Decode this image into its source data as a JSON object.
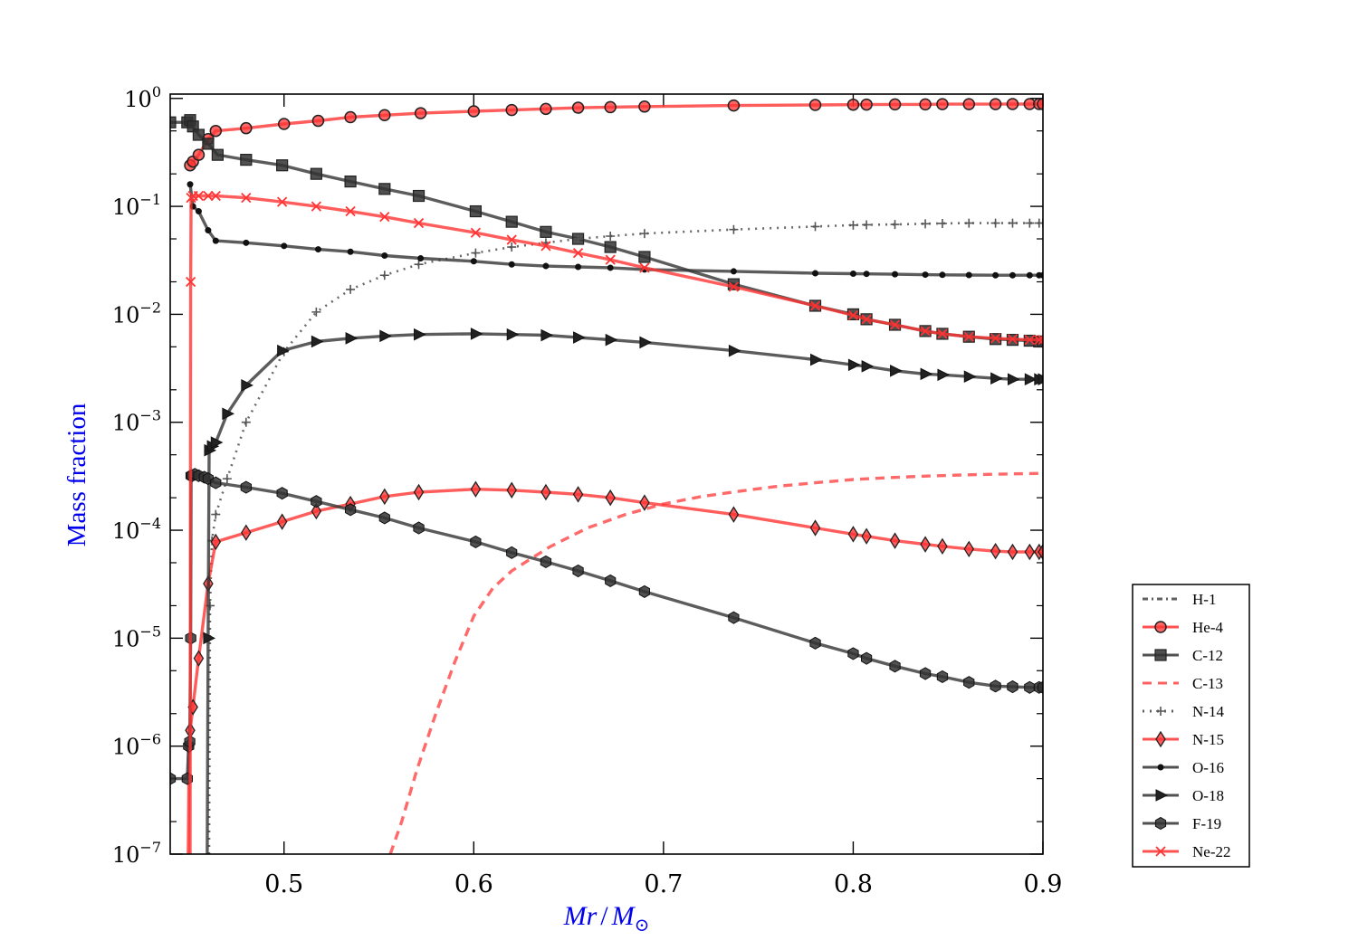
{
  "chart_data": {
    "type": "line",
    "xlabel": {
      "main": "Mr",
      "slash": "/",
      "sym": "M",
      "sub": "⊙"
    },
    "ylabel": "Mass fraction",
    "xlim": [
      0.44,
      0.9
    ],
    "ylim": [
      1e-07,
      1.1
    ],
    "yscale": "log",
    "legend_position": "outside-lower-right",
    "x_ticks": [
      {
        "value": 0.5,
        "label": "0.5"
      },
      {
        "value": 0.6,
        "label": "0.6"
      },
      {
        "value": 0.7,
        "label": "0.7"
      },
      {
        "value": 0.8,
        "label": "0.8"
      },
      {
        "value": 0.9,
        "label": "0.9"
      }
    ],
    "y_ticks": [
      {
        "exp": 0,
        "base": "10",
        "sup": "0"
      },
      {
        "exp": -1,
        "base": "10",
        "sup": "−1"
      },
      {
        "exp": -2,
        "base": "10",
        "sup": "−2"
      },
      {
        "exp": -3,
        "base": "10",
        "sup": "−3"
      },
      {
        "exp": -4,
        "base": "10",
        "sup": "−4"
      },
      {
        "exp": -5,
        "base": "10",
        "sup": "−5"
      },
      {
        "exp": -6,
        "base": "10",
        "sup": "−6"
      },
      {
        "exp": -7,
        "base": "10",
        "sup": "−7"
      }
    ],
    "series": [
      {
        "name": "H-1",
        "color": "#444444",
        "dash": "2 5 8 5",
        "marker": "none",
        "x": [],
        "y": []
      },
      {
        "name": "He-4",
        "color": "#ff3333",
        "dash": "",
        "marker": "circle",
        "x": [
          0.4505,
          0.452,
          0.455,
          0.46,
          0.464,
          0.48,
          0.5,
          0.518,
          0.535,
          0.553,
          0.572,
          0.6,
          0.62,
          0.638,
          0.655,
          0.672,
          0.69,
          0.737,
          0.78,
          0.8,
          0.807,
          0.822,
          0.838,
          0.847,
          0.861,
          0.875,
          0.884,
          0.893,
          0.898,
          0.9
        ],
        "y": [
          0.24,
          0.26,
          0.3,
          0.42,
          0.5,
          0.53,
          0.58,
          0.62,
          0.67,
          0.7,
          0.73,
          0.76,
          0.78,
          0.8,
          0.82,
          0.83,
          0.84,
          0.86,
          0.87,
          0.875,
          0.877,
          0.88,
          0.88,
          0.885,
          0.885,
          0.885,
          0.887,
          0.887,
          0.887,
          0.887
        ]
      },
      {
        "name": "C-12",
        "color": "#333333",
        "dash": "",
        "marker": "square",
        "x": [
          0.44,
          0.449,
          0.4505,
          0.452,
          0.455,
          0.46,
          0.465,
          0.48,
          0.499,
          0.517,
          0.535,
          0.553,
          0.571,
          0.601,
          0.62,
          0.638,
          0.655,
          0.672,
          0.69,
          0.737,
          0.78,
          0.8,
          0.807,
          0.822,
          0.838,
          0.847,
          0.861,
          0.875,
          0.884,
          0.893,
          0.898,
          0.9
        ],
        "y": [
          0.6,
          0.6,
          0.63,
          0.55,
          0.46,
          0.38,
          0.3,
          0.27,
          0.24,
          0.2,
          0.17,
          0.145,
          0.125,
          0.09,
          0.072,
          0.058,
          0.05,
          0.042,
          0.034,
          0.019,
          0.012,
          0.01,
          0.009,
          0.008,
          0.007,
          0.0066,
          0.0062,
          0.0059,
          0.0058,
          0.0057,
          0.0056,
          0.0056
        ]
      },
      {
        "name": "C-13",
        "color": "#ff4444",
        "dash": "10 7",
        "marker": "none",
        "x": [
          0.556,
          0.562,
          0.57,
          0.58,
          0.59,
          0.6,
          0.61,
          0.62,
          0.64,
          0.66,
          0.68,
          0.7,
          0.72,
          0.74,
          0.76,
          0.78,
          0.8,
          0.82,
          0.84,
          0.86,
          0.88,
          0.9
        ],
        "y": [
          1e-07,
          2e-07,
          6e-07,
          2e-06,
          6e-06,
          1.6e-05,
          2.9e-05,
          4.2e-05,
          7e-05,
          0.000105,
          0.00014,
          0.000175,
          0.000205,
          0.00023,
          0.000255,
          0.000275,
          0.000295,
          0.000308,
          0.000318,
          0.000326,
          0.000332,
          0.000336
        ]
      },
      {
        "name": "N-14",
        "color": "#444444",
        "dash": "2 6",
        "marker": "plus",
        "x": [
          0.4605,
          0.461,
          0.462,
          0.464,
          0.47,
          0.48,
          0.5,
          0.517,
          0.535,
          0.553,
          0.571,
          0.601,
          0.62,
          0.638,
          0.655,
          0.672,
          0.69,
          0.737,
          0.78,
          0.8,
          0.807,
          0.822,
          0.838,
          0.847,
          0.861,
          0.875,
          0.884,
          0.893,
          0.898,
          0.9
        ],
        "y": [
          1e-07,
          2e-05,
          8e-05,
          0.00014,
          0.0003,
          0.001,
          0.0045,
          0.0105,
          0.017,
          0.023,
          0.029,
          0.037,
          0.042,
          0.046,
          0.05,
          0.053,
          0.056,
          0.061,
          0.065,
          0.067,
          0.0675,
          0.068,
          0.069,
          0.0695,
          0.07,
          0.07,
          0.07,
          0.07,
          0.07,
          0.07
        ]
      },
      {
        "name": "N-15",
        "color": "#ff3333",
        "dash": "",
        "marker": "diamond",
        "x": [
          0.4495,
          0.45,
          0.4505,
          0.452,
          0.455,
          0.46,
          0.464,
          0.48,
          0.499,
          0.517,
          0.535,
          0.553,
          0.571,
          0.601,
          0.62,
          0.638,
          0.655,
          0.672,
          0.69,
          0.737,
          0.78,
          0.8,
          0.807,
          0.822,
          0.838,
          0.847,
          0.861,
          0.875,
          0.884,
          0.893,
          0.898,
          0.9
        ],
        "y": [
          1e-07,
          1e-06,
          1.4e-06,
          2.3e-06,
          6.5e-06,
          3.2e-05,
          7.8e-05,
          9.5e-05,
          0.00012,
          0.00015,
          0.000175,
          0.000205,
          0.000225,
          0.00024,
          0.000235,
          0.000225,
          0.000215,
          0.0002,
          0.00018,
          0.00014,
          0.000105,
          9.2e-05,
          8.8e-05,
          8e-05,
          7.4e-05,
          7.1e-05,
          6.7e-05,
          6.4e-05,
          6.3e-05,
          6.3e-05,
          6.3e-05,
          6.3e-05
        ]
      },
      {
        "name": "O-16",
        "color": "#333333",
        "dash": "",
        "marker": "dot",
        "x": [
          0.4505,
          0.452,
          0.455,
          0.46,
          0.464,
          0.48,
          0.5,
          0.518,
          0.535,
          0.553,
          0.572,
          0.6,
          0.62,
          0.638,
          0.655,
          0.672,
          0.69,
          0.737,
          0.78,
          0.8,
          0.807,
          0.822,
          0.838,
          0.847,
          0.861,
          0.875,
          0.884,
          0.893,
          0.898,
          0.9
        ],
        "y": [
          0.16,
          0.1,
          0.09,
          0.06,
          0.048,
          0.046,
          0.043,
          0.04,
          0.038,
          0.035,
          0.033,
          0.031,
          0.029,
          0.028,
          0.0275,
          0.027,
          0.026,
          0.025,
          0.024,
          0.0238,
          0.0237,
          0.0235,
          0.0233,
          0.0232,
          0.0231,
          0.023,
          0.023,
          0.023,
          0.023,
          0.023
        ]
      },
      {
        "name": "O-18",
        "color": "#333333",
        "dash": "",
        "marker": "triangle",
        "x": [
          0.4595,
          0.46,
          0.4605,
          0.462,
          0.464,
          0.47,
          0.48,
          0.499,
          0.517,
          0.535,
          0.553,
          0.571,
          0.601,
          0.62,
          0.638,
          0.655,
          0.672,
          0.69,
          0.737,
          0.78,
          0.8,
          0.807,
          0.822,
          0.838,
          0.847,
          0.861,
          0.875,
          0.884,
          0.893,
          0.898,
          0.9
        ],
        "y": [
          1e-07,
          1e-05,
          0.00055,
          0.0006,
          0.00065,
          0.0012,
          0.0022,
          0.0046,
          0.0056,
          0.006,
          0.0063,
          0.0065,
          0.0066,
          0.0065,
          0.0064,
          0.0061,
          0.0058,
          0.0055,
          0.0046,
          0.0038,
          0.0034,
          0.0033,
          0.003,
          0.0028,
          0.00275,
          0.00265,
          0.00255,
          0.0025,
          0.0025,
          0.0025,
          0.0025
        ]
      },
      {
        "name": "F-19",
        "color": "#333333",
        "dash": "",
        "marker": "hexagon",
        "x": [
          0.44,
          0.449,
          0.4497,
          0.4503,
          0.4508,
          0.451,
          0.4515,
          0.453,
          0.455,
          0.458,
          0.46,
          0.464,
          0.48,
          0.499,
          0.517,
          0.535,
          0.553,
          0.571,
          0.601,
          0.62,
          0.638,
          0.655,
          0.672,
          0.69,
          0.737,
          0.78,
          0.8,
          0.807,
          0.822,
          0.838,
          0.847,
          0.861,
          0.875,
          0.884,
          0.893,
          0.898,
          0.9
        ],
        "y": [
          5e-07,
          5e-07,
          1e-06,
          1.1e-06,
          1e-05,
          0.00032,
          0.00032,
          0.00033,
          0.00032,
          0.00031,
          0.0003,
          0.000275,
          0.00025,
          0.00022,
          0.000185,
          0.000155,
          0.00013,
          0.000105,
          7.8e-05,
          6.2e-05,
          5.1e-05,
          4.2e-05,
          3.4e-05,
          2.7e-05,
          1.55e-05,
          9e-06,
          7.2e-06,
          6.5e-06,
          5.5e-06,
          4.7e-06,
          4.4e-06,
          3.9e-06,
          3.6e-06,
          3.55e-06,
          3.5e-06,
          3.5e-06,
          3.5e-06
        ]
      },
      {
        "name": "Ne-22",
        "color": "#ff3333",
        "dash": "",
        "marker": "x",
        "x": [
          0.4505,
          0.4508,
          0.451,
          0.452,
          0.455,
          0.46,
          0.464,
          0.48,
          0.499,
          0.517,
          0.535,
          0.553,
          0.571,
          0.601,
          0.62,
          0.638,
          0.655,
          0.672,
          0.69,
          0.737,
          0.78,
          0.8,
          0.807,
          0.822,
          0.838,
          0.847,
          0.861,
          0.875,
          0.884,
          0.893,
          0.898,
          0.9
        ],
        "y": [
          1e-07,
          0.02,
          0.12,
          0.125,
          0.125,
          0.125,
          0.125,
          0.12,
          0.11,
          0.1,
          0.09,
          0.08,
          0.07,
          0.057,
          0.049,
          0.043,
          0.037,
          0.032,
          0.027,
          0.018,
          0.012,
          0.0098,
          0.009,
          0.008,
          0.007,
          0.0066,
          0.0062,
          0.006,
          0.0059,
          0.0058,
          0.0058,
          0.0058
        ]
      }
    ]
  }
}
